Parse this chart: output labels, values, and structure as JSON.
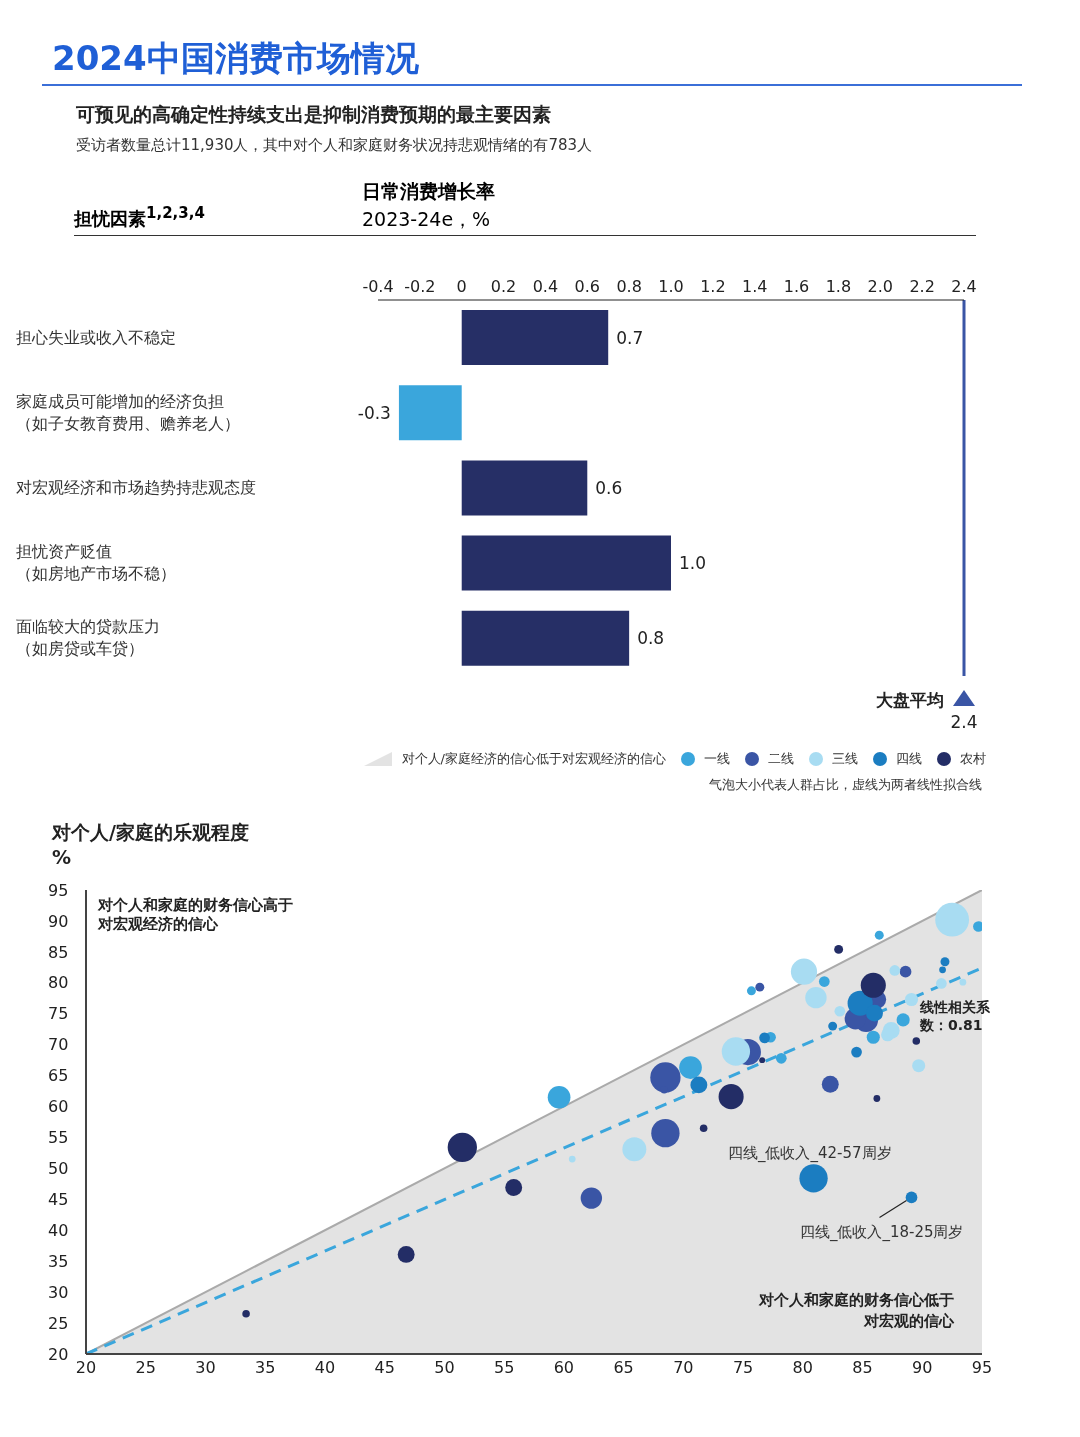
{
  "chart_data": [
    {
      "type": "bar",
      "orientation": "horizontal",
      "title": "2024中国消费市场情况",
      "subtitle": "可预见的高确定性持续支出是抑制消费预期的最主要因素",
      "annotations": [
        "受访者数量总计11,930人，其中对个人和家庭财务状况持悲观情绪的有783人",
        "2.4"
      ],
      "ylabel": "担忧因素$^{1,2,3,4}$",
      "xlabel": "日常消费增长率\n2023-24e，%",
      "categories": [
        "担心失业或收入不稳定",
        "家庭成员可能增加的经济负担（如子女教育费用、赡养老人）",
        "对宏观经济和市场趋势持悲观态度",
        "担忧资产贬值（如房地产市场不稳）",
        "面临较大的贷款压力（如房贷或车贷）"
      ],
      "values": [
        0.7,
        -0.3,
        0.6,
        1.0,
        0.8
      ],
      "colors": [
        "#262f66",
        "#3aa6dc",
        "#262f66",
        "#262f66",
        "#262f66"
      ],
      "value_labels": [
        "0.7",
        "-0.3",
        "0.6",
        "1.0",
        "0.8"
      ],
      "xlim": [
        -0.4,
        2.4
      ],
      "xticks": [
        -0.4,
        -0.2,
        0,
        0.2,
        0.4,
        0.6,
        0.8,
        {
          "value": 1,
          "label": "1.0"
        },
        1.2,
        1.4,
        1.6,
        1.8,
        {
          "value": 2,
          "label": "2.0"
        },
        2.2,
        2.4
      ],
      "ref_lines": [
        {
          "axis": "x",
          "value": 2.4,
          "label": "大盘平均",
          "color": "#3a55a5"
        }
      ]
    },
    {
      "type": "bubble",
      "ylabel": "对个人/家庭的乐观程度\n%",
      "legend": "top right",
      "annotations": [
        "对个人和家庭的财务信心高于对宏观经济的信心",
        "线性相关系数：0.81",
        "对个人和家庭的财务信心低于对宏观的信心",
        "气泡大小代表人群占比，虚线为两者线性拟合线",
        {
          "text": "四线_低收入_42-57周岁",
          "x": 80.9,
          "y": 48.4
        },
        {
          "text": "四线_低收入_18-25周岁",
          "x": 89.1,
          "y": 45.3
        }
      ],
      "xlim": [
        20,
        95
      ],
      "xticks": [
        20,
        25,
        30,
        35,
        40,
        45,
        50,
        55,
        60,
        65,
        70,
        75,
        80,
        85,
        90,
        95
      ],
      "ylim": [
        20,
        95
      ],
      "yticks": [
        20,
        25,
        30,
        35,
        40,
        45,
        50,
        55,
        60,
        65,
        70,
        75,
        80,
        85,
        90,
        95
      ],
      "series": [
        {
          "type": "area",
          "name": "对个人/家庭经济的信心低于对宏观经济的信心",
          "color": "#e3e3e3",
          "x": [
            20,
            95
          ],
          "values": [
            20,
            95
          ]
        },
        {
          "type": "line",
          "line_style": "dashed",
          "color": "#3aa6dc",
          "x": [
            20,
            95
          ],
          "values": [
            20,
            82.4
          ]
        },
        {
          "name": "一线",
          "color": "#3aa6dc",
          "x": [
            94.7,
            86.4,
            81.8,
            75.7,
            88.4,
            85.9,
            77.3,
            78.2,
            70.6,
            59.6
          ],
          "values": [
            89.1,
            87.7,
            80.2,
            78.7,
            74.0,
            71.2,
            71.2,
            67.8,
            66.3,
            61.5
          ],
          "sizes": [
            0.1,
            0.07,
            0.1,
            0.07,
            0.15,
            0.15,
            0.1,
            0.1,
            0.45,
            0.45
          ]
        },
        {
          "name": "二线",
          "color": "#3a55a5",
          "x": [
            88.6,
            76.4,
            86.2,
            85.3,
            84.4,
            75.4,
            68.5,
            68.4,
            82.3,
            68.5,
            62.3
          ],
          "values": [
            81.8,
            79.3,
            77.3,
            74.0,
            74.2,
            68.8,
            64.7,
            62.7,
            63.6,
            55.7,
            45.2
          ],
          "sizes": [
            0.12,
            0.07,
            0.3,
            0.5,
            0.4,
            0.6,
            0.8,
            0.05,
            0.25,
            0.7,
            0.4
          ]
        },
        {
          "name": "三线",
          "color": "#a8dcf2",
          "x": [
            92.5,
            87.7,
            80.1,
            91.6,
            93.4,
            81.1,
            89.1,
            83.1,
            87.4,
            87.1,
            74.4,
            89.7,
            65.9,
            60.7
          ],
          "values": [
            90.2,
            82.0,
            81.8,
            79.9,
            80.1,
            77.6,
            77.3,
            75.4,
            72.3,
            71.6,
            68.9,
            66.6,
            53.1,
            51.5
          ],
          "sizes": [
            1,
            0.1,
            0.6,
            0.1,
            0.04,
            0.4,
            0.15,
            0.1,
            0.25,
            0.15,
            0.7,
            0.15,
            0.5,
            0.04
          ]
        },
        {
          "name": "四线",
          "color": "#1b7dc1",
          "x": [
            91.9,
            91.7,
            84.8,
            86.0,
            82.5,
            76.8,
            84.5,
            71.3,
            80.9,
            89.1
          ],
          "values": [
            83.4,
            82.1,
            76.7,
            75.1,
            73.0,
            71.1,
            68.8,
            63.5,
            48.4,
            45.3
          ],
          "sizes": [
            0.07,
            0.04,
            0.55,
            0.25,
            0.07,
            0.1,
            0.1,
            0.25,
            0.7,
            0.12
          ]
        },
        {
          "name": "农村",
          "color": "#232d66",
          "x": [
            83.0,
            85.9,
            89.5,
            76.6,
            74.0,
            86.2,
            71.7,
            51.5,
            55.8,
            46.8,
            33.4
          ],
          "values": [
            85.4,
            79.6,
            70.6,
            67.5,
            61.6,
            61.3,
            56.5,
            53.4,
            46.9,
            36.1,
            26.5
          ],
          "sizes": [
            0.07,
            0.55,
            0.05,
            0.03,
            0.55,
            0.04,
            0.05,
            0.75,
            0.25,
            0.25,
            0.05
          ]
        }
      ]
    }
  ]
}
